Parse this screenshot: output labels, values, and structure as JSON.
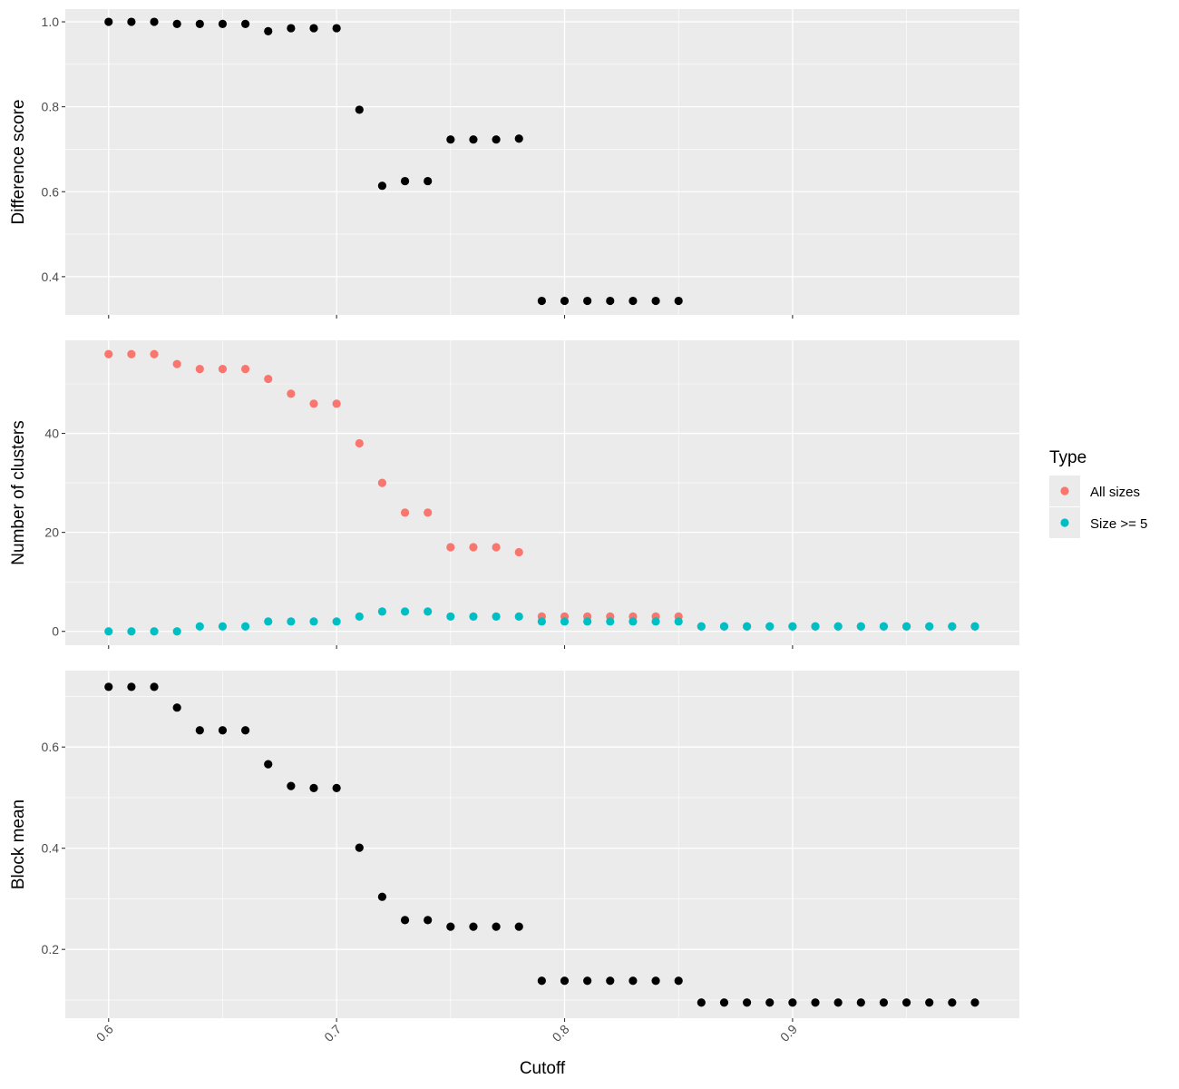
{
  "chart_data": {
    "type": "scatter",
    "x_axis": {
      "label": "Cutoff",
      "range": [
        0.581,
        0.9995
      ],
      "ticks": [
        0.6,
        0.7,
        0.8,
        0.9
      ],
      "tick_labels": [
        "0.6",
        "0.7",
        "0.8",
        "0.9"
      ],
      "tick_label_rotation_deg": -45
    },
    "legend": {
      "title": "Type",
      "placement": "right",
      "entries": [
        {
          "label": "All sizes",
          "color": "#F8766D"
        },
        {
          "label": "Size >= 5",
          "color": "#00BFC4"
        }
      ]
    },
    "background_color": "#EBEBEB",
    "grid": true,
    "panels": [
      {
        "ylabel": "Difference score",
        "ylim": [
          0.31,
          1.03
        ],
        "yticks": [
          0.4,
          0.6,
          0.8,
          1.0
        ],
        "ytick_labels": [
          "0.4",
          "0.6",
          "0.8",
          "1.0"
        ],
        "series": [
          {
            "color": "#000000",
            "x": [
              0.6,
              0.61,
              0.62,
              0.63,
              0.64,
              0.65,
              0.66,
              0.67,
              0.68,
              0.69,
              0.7,
              0.71,
              0.72,
              0.73,
              0.74,
              0.75,
              0.76,
              0.77,
              0.78,
              0.79,
              0.8,
              0.81,
              0.82,
              0.83,
              0.84,
              0.85
            ],
            "y": [
              1.0,
              1.0,
              1.0,
              0.995,
              0.995,
              0.995,
              0.995,
              0.978,
              0.985,
              0.985,
              0.985,
              0.793,
              0.614,
              0.625,
              0.625,
              0.723,
              0.723,
              0.723,
              0.725,
              0.343,
              0.343,
              0.343,
              0.343,
              0.343,
              0.343,
              0.343
            ]
          }
        ]
      },
      {
        "ylabel": "Number of clusters",
        "ylim": [
          -2.8,
          58.8
        ],
        "yticks": [
          0,
          20,
          40
        ],
        "ytick_labels": [
          "0",
          "20",
          "40"
        ],
        "series": [
          {
            "name": "All sizes",
            "color": "#F8766D",
            "x": [
              0.6,
              0.61,
              0.62,
              0.63,
              0.64,
              0.65,
              0.66,
              0.67,
              0.68,
              0.69,
              0.7,
              0.71,
              0.72,
              0.73,
              0.74,
              0.75,
              0.76,
              0.77,
              0.78,
              0.79,
              0.8,
              0.81,
              0.82,
              0.83,
              0.84,
              0.85,
              0.86,
              0.87,
              0.88,
              0.89,
              0.9,
              0.91,
              0.92,
              0.93,
              0.94,
              0.95,
              0.96,
              0.97,
              0.98
            ],
            "y": [
              56,
              56,
              56,
              54,
              53,
              53,
              53,
              51,
              48,
              46,
              46,
              38,
              30,
              24,
              24,
              17,
              17,
              17,
              16,
              3,
              3,
              3,
              3,
              3,
              3,
              3,
              1,
              1,
              1,
              1,
              1,
              1,
              1,
              1,
              1,
              1,
              1,
              1,
              1
            ]
          },
          {
            "name": "Size >= 5",
            "color": "#00BFC4",
            "x": [
              0.6,
              0.61,
              0.62,
              0.63,
              0.64,
              0.65,
              0.66,
              0.67,
              0.68,
              0.69,
              0.7,
              0.71,
              0.72,
              0.73,
              0.74,
              0.75,
              0.76,
              0.77,
              0.78,
              0.79,
              0.8,
              0.81,
              0.82,
              0.83,
              0.84,
              0.85,
              0.86,
              0.87,
              0.88,
              0.89,
              0.9,
              0.91,
              0.92,
              0.93,
              0.94,
              0.95,
              0.96,
              0.97,
              0.98
            ],
            "y": [
              0,
              0,
              0,
              0,
              1,
              1,
              1,
              2,
              2,
              2,
              2,
              3,
              4,
              4,
              4,
              3,
              3,
              3,
              3,
              2,
              2,
              2,
              2,
              2,
              2,
              2,
              1,
              1,
              1,
              1,
              1,
              1,
              1,
              1,
              1,
              1,
              1,
              1,
              1
            ]
          }
        ]
      },
      {
        "ylabel": "Block mean",
        "ylim": [
          0.064,
          0.751
        ],
        "yticks": [
          0.2,
          0.4,
          0.6
        ],
        "ytick_labels": [
          "0.2",
          "0.4",
          "0.6"
        ],
        "series": [
          {
            "color": "#000000",
            "x": [
              0.6,
              0.61,
              0.62,
              0.63,
              0.64,
              0.65,
              0.66,
              0.67,
              0.68,
              0.69,
              0.7,
              0.71,
              0.72,
              0.73,
              0.74,
              0.75,
              0.76,
              0.77,
              0.78,
              0.79,
              0.8,
              0.81,
              0.82,
              0.83,
              0.84,
              0.85,
              0.86,
              0.87,
              0.88,
              0.89,
              0.9,
              0.91,
              0.92,
              0.93,
              0.94,
              0.95,
              0.96,
              0.97,
              0.98
            ],
            "y": [
              0.719,
              0.719,
              0.719,
              0.678,
              0.633,
              0.633,
              0.633,
              0.566,
              0.523,
              0.519,
              0.519,
              0.401,
              0.304,
              0.258,
              0.258,
              0.245,
              0.245,
              0.245,
              0.245,
              0.138,
              0.138,
              0.138,
              0.138,
              0.138,
              0.138,
              0.138,
              0.095,
              0.095,
              0.095,
              0.095,
              0.095,
              0.095,
              0.095,
              0.095,
              0.095,
              0.095,
              0.095,
              0.095,
              0.095
            ]
          }
        ]
      }
    ]
  }
}
